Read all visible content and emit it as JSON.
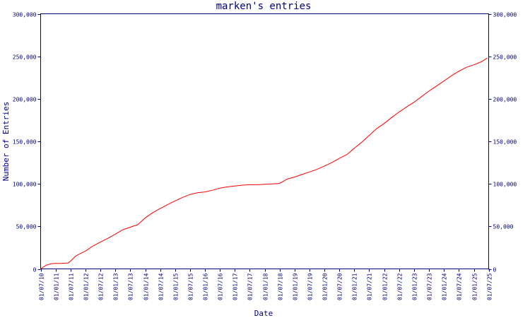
{
  "chart_data": {
    "type": "line",
    "title": "marken's entries",
    "xlabel": "Date",
    "ylabel": "Number of Entries",
    "ylim": [
      0,
      300000
    ],
    "yticks": [
      0,
      50000,
      100000,
      150000,
      200000,
      250000,
      300000
    ],
    "ytick_labels": [
      "0",
      "50,000",
      "100,000",
      "150,000",
      "200,000",
      "250,000",
      "300,000"
    ],
    "xlim": [
      "2010-07-01",
      "2025-07-01"
    ],
    "xticks": [
      "2010-07-01",
      "2011-01-01",
      "2011-07-01",
      "2012-01-01",
      "2012-07-01",
      "2013-01-01",
      "2013-07-01",
      "2014-01-01",
      "2014-07-01",
      "2015-01-01",
      "2015-07-01",
      "2016-01-01",
      "2016-07-01",
      "2017-01-01",
      "2017-07-01",
      "2018-01-01",
      "2018-07-01",
      "2019-01-01",
      "2019-07-01",
      "2020-01-01",
      "2020-07-01",
      "2021-01-01",
      "2021-07-01",
      "2022-01-01",
      "2022-07-01",
      "2023-01-01",
      "2023-07-01",
      "2024-01-01",
      "2024-07-01",
      "2025-01-01",
      "2025-07-01"
    ],
    "xtick_labels": [
      "01/07/10",
      "01/01/11",
      "01/07/11",
      "01/01/12",
      "01/07/12",
      "01/01/13",
      "01/07/13",
      "01/01/14",
      "01/07/14",
      "01/01/15",
      "01/07/15",
      "01/01/16",
      "01/07/16",
      "01/01/17",
      "01/07/17",
      "01/01/18",
      "01/07/18",
      "01/01/19",
      "01/07/19",
      "01/01/20",
      "01/07/20",
      "01/01/21",
      "01/07/21",
      "01/01/22",
      "01/07/22",
      "01/01/23",
      "01/07/23",
      "01/01/24",
      "01/07/24",
      "01/01/25",
      "01/07/25"
    ],
    "grid": false,
    "color": "#ff0000",
    "axis_color": "#000080",
    "series": [
      {
        "x": [
          "2010-07-01",
          "2010-09-01",
          "2010-11-01",
          "2011-01-01",
          "2011-03-01",
          "2011-06-01",
          "2011-07-01",
          "2011-09-01",
          "2011-10-01",
          "2012-01-01",
          "2012-04-01",
          "2012-07-01",
          "2012-10-01",
          "2013-01-01",
          "2013-04-01",
          "2013-07-01",
          "2013-10-01",
          "2014-01-01",
          "2014-04-01",
          "2014-07-01",
          "2014-10-01",
          "2015-01-01",
          "2015-04-01",
          "2015-07-01",
          "2015-10-01",
          "2016-01-01",
          "2016-04-01",
          "2016-07-01",
          "2016-10-01",
          "2017-01-01",
          "2017-04-01",
          "2017-07-01",
          "2017-10-01",
          "2018-01-01",
          "2018-04-01",
          "2018-07-01",
          "2018-10-01",
          "2019-01-01",
          "2019-04-01",
          "2019-07-01",
          "2019-10-01",
          "2020-01-01",
          "2020-04-01",
          "2020-07-01",
          "2020-10-01",
          "2021-01-01",
          "2021-04-01",
          "2021-07-01",
          "2021-10-01",
          "2022-01-01",
          "2022-04-01",
          "2022-07-01",
          "2022-10-01",
          "2023-01-01",
          "2023-04-01",
          "2023-07-01",
          "2023-10-01",
          "2024-01-01",
          "2024-04-01",
          "2024-07-01",
          "2024-10-01",
          "2025-01-01",
          "2025-04-01",
          "2025-06-15"
        ],
        "values": [
          0,
          4000,
          6000,
          6500,
          6500,
          7000,
          9000,
          15000,
          16500,
          21000,
          27000,
          31500,
          36000,
          41000,
          46000,
          49000,
          52000,
          60000,
          66000,
          71000,
          75500,
          80000,
          84000,
          87500,
          89500,
          90500,
          92500,
          95000,
          96500,
          97500,
          98500,
          99000,
          99000,
          99500,
          100000,
          100500,
          105500,
          108000,
          111000,
          114000,
          117000,
          121000,
          125000,
          130000,
          134500,
          142000,
          149000,
          157000,
          165000,
          171000,
          178000,
          184500,
          190500,
          196000,
          202500,
          209000,
          215000,
          221000,
          227000,
          232500,
          237000,
          240000,
          243500,
          248000
        ]
      }
    ]
  }
}
